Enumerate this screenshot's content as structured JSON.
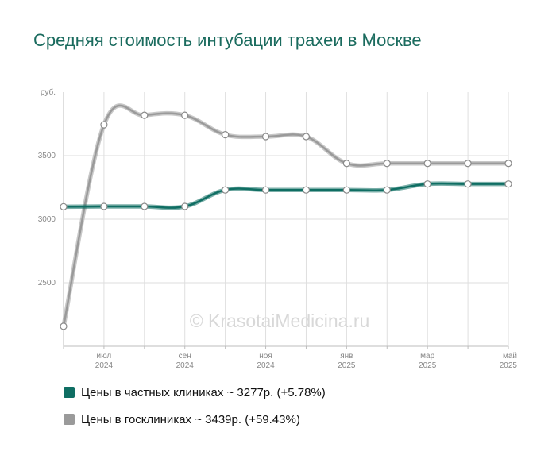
{
  "chart_data": {
    "type": "line",
    "title": "Средняя стоимость интубации трахеи в Москве",
    "y_unit": "руб.",
    "y_ticks": [
      2500,
      3000,
      3500
    ],
    "ylim": [
      2000,
      4000
    ],
    "x_ticks": [
      {
        "i": 1,
        "month": "июл",
        "year": "2024"
      },
      {
        "i": 3,
        "month": "сен",
        "year": "2024"
      },
      {
        "i": 5,
        "month": "ноя",
        "year": "2024"
      },
      {
        "i": 7,
        "month": "янв",
        "year": "2025"
      },
      {
        "i": 9,
        "month": "мар",
        "year": "2025"
      },
      {
        "i": 11,
        "month": "май",
        "year": "2025"
      }
    ],
    "x_count": 12,
    "grid": true,
    "watermark": "© KrasotaiMedicina.ru",
    "series": [
      {
        "name": "Цены в частных клиниках",
        "legend": "Цены в частных клиниках ~ 3277р. (+5.78%)",
        "color": "#0f6e63",
        "values": [
          3098,
          3100,
          3100,
          3100,
          3230,
          3230,
          3230,
          3230,
          3230,
          3277,
          3277,
          3277
        ]
      },
      {
        "name": "Цены в госклиниках",
        "legend": "Цены в госклиниках ~ 3439р. (+59.43%)",
        "color": "#9a9a9a",
        "values": [
          2157,
          3743,
          3818,
          3818,
          3665,
          3650,
          3650,
          3439,
          3439,
          3439,
          3439,
          3439
        ]
      }
    ]
  }
}
